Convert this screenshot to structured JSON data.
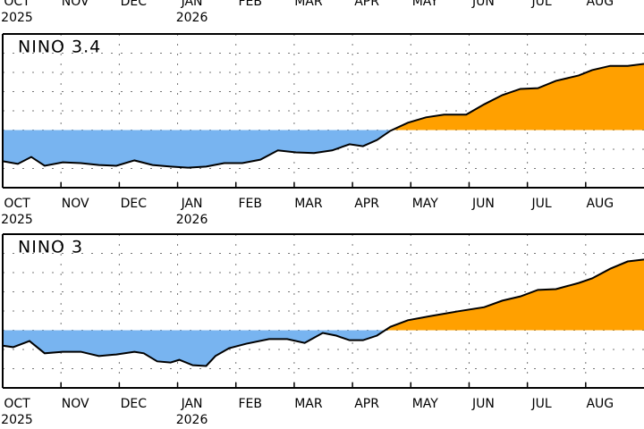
{
  "chart_data": [
    {
      "type": "area",
      "title": "NINO 3.4",
      "x": [
        0,
        0.26,
        0.49,
        0.72,
        1.03,
        1.34,
        1.65,
        1.95,
        2.26,
        2.57,
        2.88,
        3.18,
        3.49,
        3.8,
        4.11,
        4.42,
        4.72,
        5.03,
        5.34,
        5.65,
        5.95,
        6.18,
        6.42,
        6.65,
        6.95,
        7.26,
        7.57,
        7.95,
        8.26,
        8.57,
        8.88,
        9.18,
        9.49,
        9.88,
        10.11,
        10.42,
        10.72,
        11.0
      ],
      "values": [
        -0.81,
        -0.88,
        -0.7,
        -0.93,
        -0.84,
        -0.86,
        -0.91,
        -0.93,
        -0.79,
        -0.91,
        -0.95,
        -0.98,
        -0.95,
        -0.86,
        -0.86,
        -0.77,
        -0.53,
        -0.58,
        -0.6,
        -0.53,
        -0.37,
        -0.42,
        -0.26,
        -0.02,
        0.19,
        0.33,
        0.4,
        0.4,
        0.67,
        0.91,
        1.07,
        1.09,
        1.28,
        1.42,
        1.56,
        1.67,
        1.67,
        1.72
      ],
      "positive_color": "#ffa000",
      "negative_color": "#78b4f0",
      "line_color": "#000000",
      "xlim": [
        0,
        11.0
      ],
      "ylim": [
        -1.5,
        2.5
      ],
      "yticks": [
        -1,
        -0.5,
        0,
        0.5,
        1,
        1.5,
        2
      ],
      "xticks": [
        {
          "value": 0,
          "label": "OCT"
        },
        {
          "value": 1,
          "label": "NOV"
        },
        {
          "value": 2,
          "label": "DEC"
        },
        {
          "value": 3,
          "label": "JAN"
        },
        {
          "value": 4,
          "label": "FEB"
        },
        {
          "value": 5,
          "label": "MAR"
        },
        {
          "value": 6,
          "label": "APR"
        },
        {
          "value": 7,
          "label": "MAY"
        },
        {
          "value": 8,
          "label": "JUN"
        },
        {
          "value": 9,
          "label": "JUL"
        },
        {
          "value": 10,
          "label": "AUG"
        }
      ],
      "year_labels": [
        {
          "value": 0,
          "label": "2025"
        },
        {
          "value": 3,
          "label": "2026"
        }
      ],
      "grid": true
    },
    {
      "type": "area",
      "title": "NINO 3",
      "x": [
        0,
        0.18,
        0.46,
        0.72,
        1.03,
        1.34,
        1.65,
        1.95,
        2.26,
        2.42,
        2.65,
        2.88,
        3.03,
        3.26,
        3.49,
        3.65,
        3.88,
        4.18,
        4.57,
        4.88,
        5.18,
        5.49,
        5.72,
        5.95,
        6.18,
        6.42,
        6.65,
        6.95,
        7.34,
        7.8,
        8.26,
        8.57,
        8.88,
        9.18,
        9.49,
        9.88,
        10.11,
        10.42,
        10.72,
        11.0
      ],
      "values": [
        -0.4,
        -0.44,
        -0.28,
        -0.6,
        -0.56,
        -0.56,
        -0.67,
        -0.63,
        -0.56,
        -0.6,
        -0.81,
        -0.84,
        -0.77,
        -0.91,
        -0.93,
        -0.67,
        -0.47,
        -0.35,
        -0.23,
        -0.23,
        -0.33,
        -0.07,
        -0.14,
        -0.26,
        -0.26,
        -0.14,
        0.09,
        0.26,
        0.37,
        0.49,
        0.6,
        0.77,
        0.88,
        1.05,
        1.07,
        1.23,
        1.35,
        1.6,
        1.79,
        1.84
      ],
      "positive_color": "#ffa000",
      "negative_color": "#78b4f0",
      "line_color": "#000000",
      "xlim": [
        0,
        11.0
      ],
      "ylim": [
        -1.5,
        2.5
      ],
      "yticks": [
        -1,
        -0.5,
        0,
        0.5,
        1,
        1.5,
        2
      ],
      "xticks": [
        {
          "value": 0,
          "label": "OCT"
        },
        {
          "value": 1,
          "label": "NOV"
        },
        {
          "value": 2,
          "label": "DEC"
        },
        {
          "value": 3,
          "label": "JAN"
        },
        {
          "value": 4,
          "label": "FEB"
        },
        {
          "value": 5,
          "label": "MAR"
        },
        {
          "value": 6,
          "label": "APR"
        },
        {
          "value": 7,
          "label": "MAY"
        },
        {
          "value": 8,
          "label": "JUN"
        },
        {
          "value": 9,
          "label": "JUL"
        },
        {
          "value": 10,
          "label": "AUG"
        }
      ],
      "year_labels": [
        {
          "value": 0,
          "label": "2025"
        },
        {
          "value": 3,
          "label": "2026"
        }
      ],
      "grid": true
    }
  ]
}
